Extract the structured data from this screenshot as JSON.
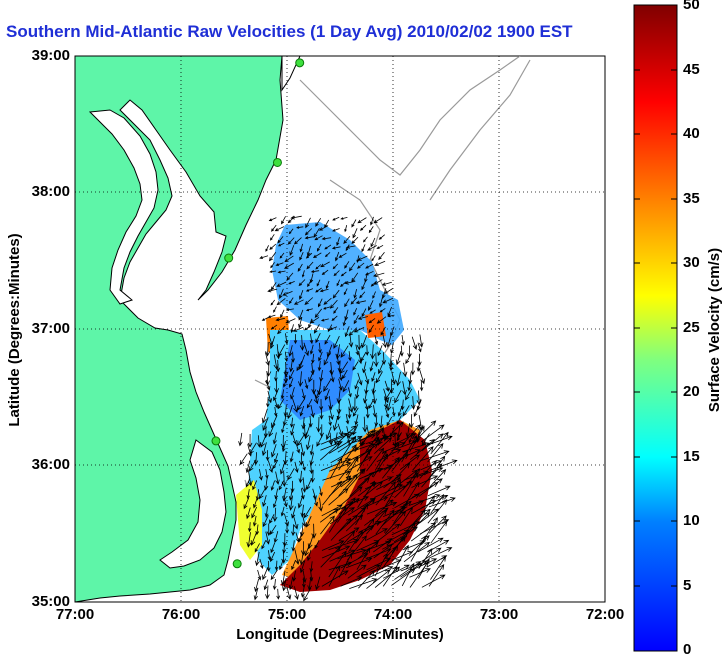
{
  "title": "Southern Mid-Atlantic Raw Velocities (1 Day Avg) 2010/02/02 1900 EST",
  "map": {
    "projection": "lon/lat",
    "lon_range": [
      -77,
      -72
    ],
    "lat_range": [
      35,
      39
    ],
    "x_axis_title": "Longitude (Degrees:Minutes)",
    "y_axis_title": "Latitude (Degrees:Minutes)",
    "x_ticks": [
      "77:00",
      "76:00",
      "75:00",
      "74:00",
      "73:00",
      "72:00"
    ],
    "y_ticks": [
      "39:00",
      "38:00",
      "37:00",
      "36:00",
      "35:00"
    ],
    "grid": "dotted",
    "land_color": "#5ef5a8",
    "coastline_color": "#000000",
    "bathymetry_contour_color": "#9a9a9a"
  },
  "colorbar": {
    "title": "Surface Velocity (cm/s)",
    "min": 0,
    "max": 50,
    "tick_labels": [
      "0",
      "5",
      "10",
      "15",
      "20",
      "25",
      "30",
      "35",
      "40",
      "45",
      "50"
    ],
    "colormap": "jet"
  },
  "stations": [
    {
      "lon": -74.88,
      "lat": 38.95
    },
    {
      "lon": -75.09,
      "lat": 38.22
    },
    {
      "lon": -75.55,
      "lat": 37.52
    },
    {
      "lon": -75.67,
      "lat": 36.18
    },
    {
      "lon": -75.47,
      "lat": 35.28
    }
  ],
  "velocity_field": {
    "region_summary": "Low speeds (2-10 cm/s) near 37N-36.5N offshore of Virginia; 12-20 cm/s along the shelf; 40-50 cm/s (Gulf Stream) southeast of 36N.",
    "zones": [
      {
        "name": "north-shelf",
        "speed_cm_s": 8
      },
      {
        "name": "mid-shelf",
        "speed_cm_s": 15
      },
      {
        "name": "hatteras-jet",
        "speed_cm_s": 48
      }
    ]
  }
}
